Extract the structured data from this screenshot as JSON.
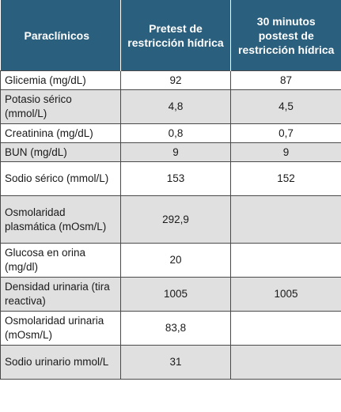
{
  "table": {
    "headers": [
      "Paraclínicos",
      "Pretest de restricción hídrica",
      "30 minutos postest de restricción hídrica"
    ],
    "rows": [
      {
        "label": "Glicemia (mg/dL)",
        "pretest": "92",
        "postest": "87"
      },
      {
        "label": "Potasio sérico (mmol/L)",
        "pretest": "4,8",
        "postest": "4,5"
      },
      {
        "label": "Creatinina (mg/dL)",
        "pretest": "0,8",
        "postest": "0,7"
      },
      {
        "label": "BUN (mg/dL)",
        "pretest": "9",
        "postest": "9"
      },
      {
        "label": "Sodio sérico (mmol/L)",
        "pretest": "153",
        "postest": "152"
      },
      {
        "label": "Osmolaridad plasmática (mOsm/L)",
        "pretest": "292,9",
        "postest": ""
      },
      {
        "label": "Glucosa en orina (mg/dl)",
        "pretest": "20",
        "postest": ""
      },
      {
        "label": "Densidad urinaria (tira reactiva)",
        "pretest": "1005",
        "postest": "1005"
      },
      {
        "label": "Osmolaridad urinaria (mOsm/L)",
        "pretest": "83,8",
        "postest": ""
      },
      {
        "label": "Sodio urinario mmol/L",
        "pretest": "31",
        "postest": ""
      }
    ]
  }
}
